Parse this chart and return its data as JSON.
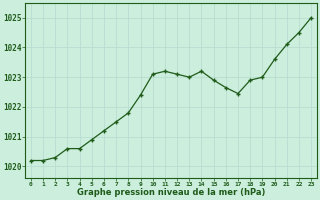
{
  "x": [
    0,
    1,
    2,
    3,
    4,
    5,
    6,
    7,
    8,
    9,
    10,
    11,
    12,
    13,
    14,
    15,
    16,
    17,
    18,
    19,
    20,
    21,
    22,
    23
  ],
  "y": [
    1020.2,
    1020.2,
    1020.3,
    1020.6,
    1020.6,
    1020.9,
    1021.2,
    1021.5,
    1021.8,
    1022.4,
    1023.1,
    1023.2,
    1023.1,
    1023.0,
    1023.2,
    1022.9,
    1022.65,
    1022.45,
    1022.9,
    1023.0,
    1023.6,
    1024.1,
    1024.5,
    1025.0
  ],
  "ylim": [
    1019.6,
    1025.5
  ],
  "yticks": [
    1020,
    1021,
    1022,
    1023,
    1024,
    1025
  ],
  "xtick_labels": [
    "0",
    "1",
    "2",
    "3",
    "4",
    "5",
    "6",
    "7",
    "8",
    "9",
    "1011",
    "1213",
    "1415",
    "1617",
    "1819",
    "2021",
    "2223"
  ],
  "xlabel": "Graphe pression niveau de la mer (hPa)",
  "line_color": "#1f5c1a",
  "marker_color": "#1f5c1a",
  "bg_color": "#cceedd",
  "grid_color": "#b8ddd0",
  "xlabel_color": "#1f5c1a",
  "tick_label_color": "#1f5c1a"
}
